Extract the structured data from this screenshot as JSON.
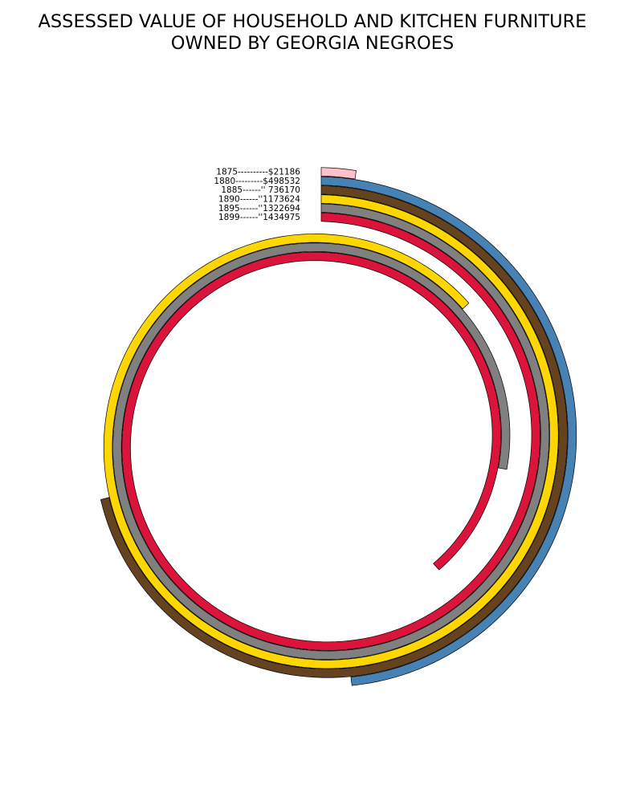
{
  "chart_data": {
    "type": "spiral-bar",
    "title_lines": [
      "ASSESSED VALUE OF HOUSEHOLD AND KITCHEN FURNITURE",
      "OWNED BY GEORGIA NEGROES"
    ],
    "max_value": 1500000,
    "full_scale_degrees": 520,
    "series": [
      {
        "year": "1875",
        "value": 21186,
        "label": "1875----------$21186",
        "color": "#ffc0cb"
      },
      {
        "year": "1880",
        "value": 498532,
        "label": "1880---------$498532",
        "color": "#4682b4"
      },
      {
        "year": "1885",
        "value": 736170,
        "label": "1885------''  736170",
        "color": "#654321"
      },
      {
        "year": "1890",
        "value": 1173624,
        "label": "1890------''1173624",
        "color": "#ffd700"
      },
      {
        "year": "1895",
        "value": 1322694,
        "label": "1895------''1322694",
        "color": "#808080"
      },
      {
        "year": "1899",
        "value": 1434975,
        "label": "1899------''1434975",
        "color": "#dc143c"
      }
    ]
  }
}
